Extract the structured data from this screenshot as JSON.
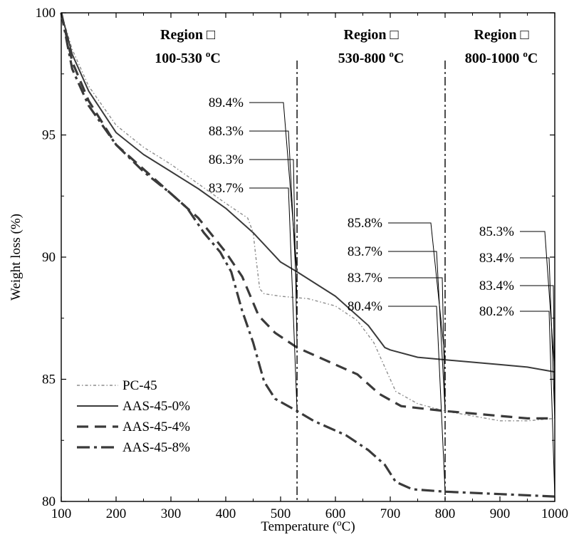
{
  "chart_data": {
    "type": "line",
    "xlabel": "Temperature (",
    "xlabel_unit_sup": "o",
    "xlabel_tail": "C)",
    "ylabel": "Weight loss (%)",
    "xlim": [
      100,
      1000
    ],
    "ylim": [
      80,
      100
    ],
    "xticks": [
      100,
      200,
      300,
      400,
      500,
      600,
      700,
      800,
      900,
      1000
    ],
    "yticks": [
      80,
      85,
      90,
      95,
      100
    ],
    "grid": false,
    "legend_position": "lower-left",
    "regions": [
      {
        "title": "Region □",
        "range": "100-530",
        "unit": "C",
        "deg": "o"
      },
      {
        "title": "Region □",
        "range": "530-800",
        "unit": "C",
        "deg": "o"
      },
      {
        "title": "Region □",
        "range": "800-1000",
        "unit": "C",
        "deg": "o"
      }
    ],
    "dividers": [
      530,
      800
    ],
    "series": [
      {
        "name": "PC-45",
        "style": "dotted",
        "color": "#8c8c8c",
        "points": [
          [
            100,
            100
          ],
          [
            120,
            98.5
          ],
          [
            150,
            97.0
          ],
          [
            200,
            95.4
          ],
          [
            250,
            94.5
          ],
          [
            300,
            93.8
          ],
          [
            350,
            93.0
          ],
          [
            400,
            92.2
          ],
          [
            440,
            91.6
          ],
          [
            450,
            91.0
          ],
          [
            455,
            90.0
          ],
          [
            462,
            88.7
          ],
          [
            470,
            88.5
          ],
          [
            500,
            88.4
          ],
          [
            550,
            88.3
          ],
          [
            600,
            88.0
          ],
          [
            640,
            87.4
          ],
          [
            670,
            86.5
          ],
          [
            690,
            85.5
          ],
          [
            710,
            84.5
          ],
          [
            750,
            84.0
          ],
          [
            800,
            83.7
          ],
          [
            850,
            83.5
          ],
          [
            900,
            83.3
          ],
          [
            950,
            83.3
          ],
          [
            1000,
            83.4
          ]
        ]
      },
      {
        "name": "AAS-45-0%",
        "style": "solid",
        "color": "#3a3a3a",
        "points": [
          [
            100,
            100
          ],
          [
            120,
            98.3
          ],
          [
            150,
            96.8
          ],
          [
            200,
            95.1
          ],
          [
            250,
            94.2
          ],
          [
            300,
            93.5
          ],
          [
            350,
            92.8
          ],
          [
            400,
            92.0
          ],
          [
            450,
            91.0
          ],
          [
            500,
            89.8
          ],
          [
            530,
            89.4
          ],
          [
            600,
            88.4
          ],
          [
            660,
            87.2
          ],
          [
            690,
            86.3
          ],
          [
            700,
            86.2
          ],
          [
            750,
            85.9
          ],
          [
            800,
            85.8
          ],
          [
            850,
            85.7
          ],
          [
            900,
            85.6
          ],
          [
            950,
            85.5
          ],
          [
            1000,
            85.3
          ]
        ]
      },
      {
        "name": "AAS-45-4%",
        "style": "dashed",
        "color": "#3a3a3a",
        "points": [
          [
            100,
            100
          ],
          [
            120,
            98.0
          ],
          [
            150,
            96.4
          ],
          [
            200,
            94.6
          ],
          [
            250,
            93.6
          ],
          [
            300,
            92.6
          ],
          [
            350,
            91.6
          ],
          [
            400,
            90.2
          ],
          [
            430,
            89.2
          ],
          [
            460,
            87.6
          ],
          [
            490,
            86.9
          ],
          [
            530,
            86.3
          ],
          [
            580,
            85.8
          ],
          [
            640,
            85.2
          ],
          [
            680,
            84.4
          ],
          [
            720,
            83.9
          ],
          [
            760,
            83.8
          ],
          [
            800,
            83.7
          ],
          [
            850,
            83.6
          ],
          [
            900,
            83.5
          ],
          [
            950,
            83.4
          ],
          [
            1000,
            83.4
          ]
        ]
      },
      {
        "name": "AAS-45-8%",
        "style": "dashdot",
        "color": "#3a3a3a",
        "points": [
          [
            100,
            100
          ],
          [
            120,
            97.7
          ],
          [
            150,
            96.2
          ],
          [
            200,
            94.6
          ],
          [
            250,
            93.5
          ],
          [
            300,
            92.6
          ],
          [
            330,
            92.0
          ],
          [
            360,
            91.0
          ],
          [
            390,
            90.2
          ],
          [
            410,
            89.4
          ],
          [
            430,
            87.8
          ],
          [
            450,
            86.5
          ],
          [
            470,
            84.9
          ],
          [
            490,
            84.2
          ],
          [
            530,
            83.7
          ],
          [
            560,
            83.3
          ],
          [
            620,
            82.7
          ],
          [
            660,
            82.1
          ],
          [
            690,
            81.5
          ],
          [
            710,
            80.8
          ],
          [
            740,
            80.5
          ],
          [
            800,
            80.4
          ],
          [
            900,
            80.3
          ],
          [
            1000,
            80.2
          ]
        ]
      }
    ],
    "annotations": [
      {
        "label": "89.4%",
        "region": 1,
        "x": 530,
        "y": 89.4
      },
      {
        "label": "88.3%",
        "region": 1,
        "x": 530,
        "y": 88.3
      },
      {
        "label": "86.3%",
        "region": 1,
        "x": 530,
        "y": 86.3
      },
      {
        "label": "83.7%",
        "region": 1,
        "x": 530,
        "y": 83.7
      },
      {
        "label": "85.8%",
        "region": 2,
        "x": 800,
        "y": 85.8
      },
      {
        "label": "83.7%",
        "region": 2,
        "x": 800,
        "y": 83.7
      },
      {
        "label": "83.7%",
        "region": 2,
        "x": 800,
        "y": 83.7
      },
      {
        "label": "80.4%",
        "region": 2,
        "x": 800,
        "y": 80.4
      },
      {
        "label": "85.3%",
        "region": 3,
        "x": 1000,
        "y": 85.3
      },
      {
        "label": "83.4%",
        "region": 3,
        "x": 1000,
        "y": 83.4
      },
      {
        "label": "83.4%",
        "region": 3,
        "x": 1000,
        "y": 83.4
      },
      {
        "label": "80.2%",
        "region": 3,
        "x": 1000,
        "y": 80.2
      }
    ]
  }
}
